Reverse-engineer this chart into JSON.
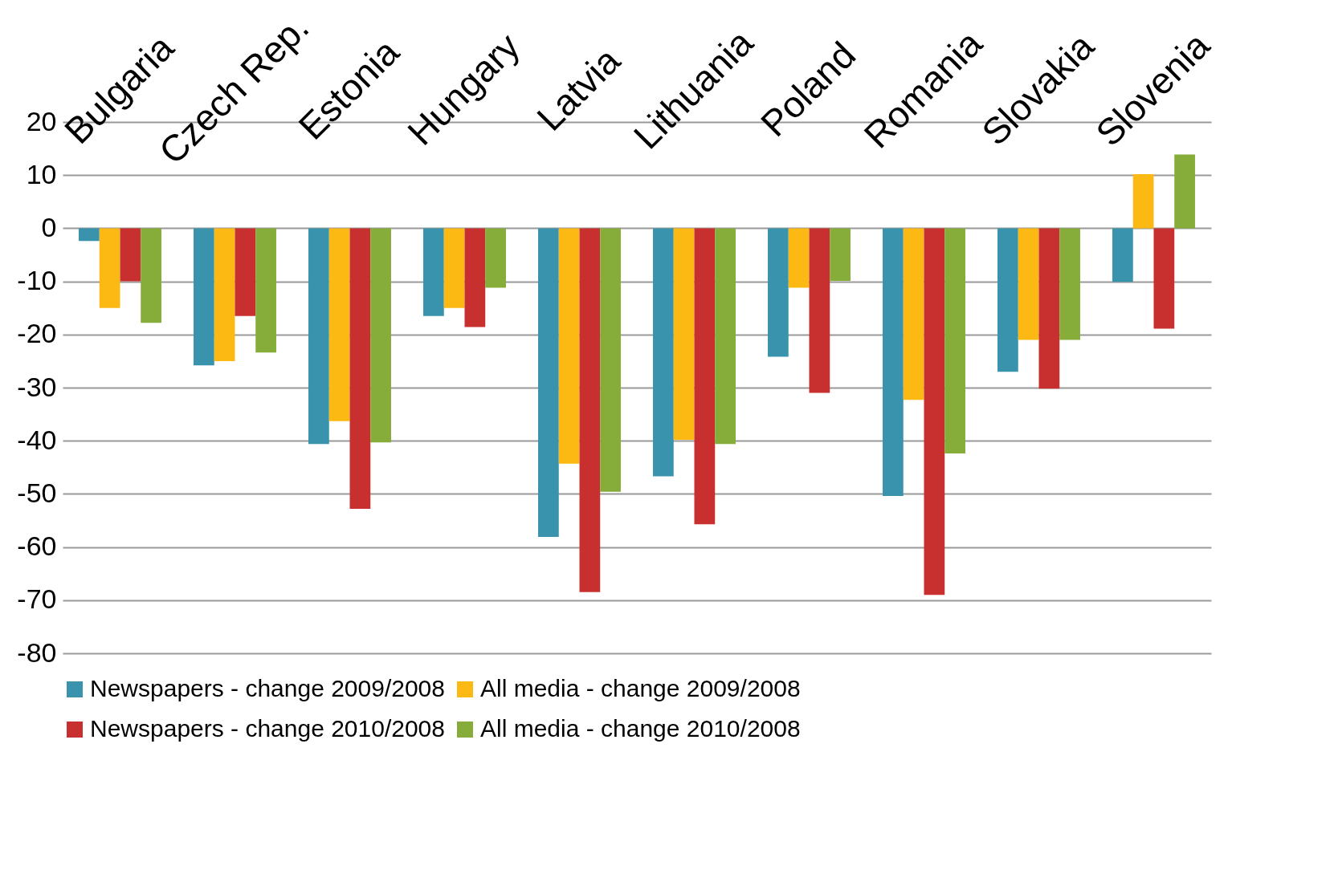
{
  "chart_data": {
    "type": "bar",
    "categories": [
      "Bulgaria",
      "Czech Rep.",
      "Estonia",
      "Hungary",
      "Latvia",
      "Lithuania",
      "Poland",
      "Romania",
      "Slovakia",
      "Slovenia"
    ],
    "series": [
      {
        "name": "Newspapers - change 2009/2008",
        "color": "#3a93ac",
        "values": [
          -2.4,
          -25.8,
          -40.6,
          -16.5,
          -58.1,
          -46.7,
          -24.2,
          -50.4,
          -27,
          -10.1
        ]
      },
      {
        "name": "All media - change 2009/2008",
        "color": "#fdb913",
        "values": [
          -15,
          -25,
          -36.3,
          -15,
          -44.3,
          -39.8,
          -11.2,
          -32.3,
          -21,
          10.2
        ]
      },
      {
        "name": "Newspapers - change 2010/2008",
        "color": "#c8302f",
        "values": [
          -10,
          -16.5,
          -52.8,
          -18.6,
          -68.5,
          -55.7,
          -31,
          -69,
          -30.2,
          -18.9
        ]
      },
      {
        "name": "All media - change 2010/2008",
        "color": "#86ad3a",
        "values": [
          -17.8,
          -23.4,
          -40.3,
          -11.2,
          -49.6,
          -40.6,
          -9.9,
          -42.4,
          -21,
          13.9
        ]
      }
    ],
    "ylim": [
      -80,
      20
    ],
    "yticks": [
      -80,
      -70,
      -60,
      -50,
      -40,
      -30,
      -20,
      -10,
      0,
      10,
      20
    ],
    "grid": "y",
    "legend": "bottom"
  }
}
